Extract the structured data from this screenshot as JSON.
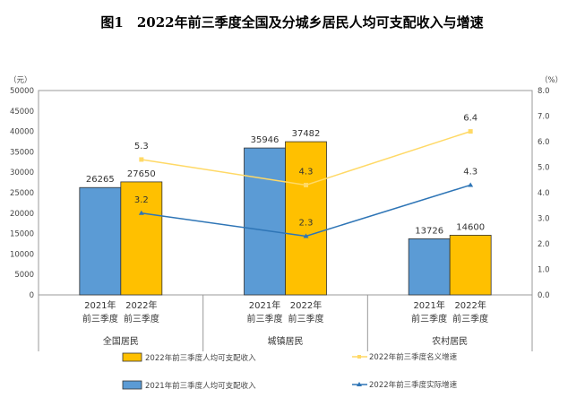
{
  "chart_data": {
    "type": "bar+line",
    "title": "图1　2022年前三季度全国及分城乡居民人均可支配收入与增速",
    "ylabel_left": "（元）",
    "ylabel_right": "（%）",
    "ylim_left": [
      0,
      50000
    ],
    "ylim_right": [
      0,
      8.0
    ],
    "yticks_left": [
      "0",
      "5000",
      "10000",
      "15000",
      "20000",
      "25000",
      "30000",
      "35000",
      "40000",
      "45000",
      "50000"
    ],
    "yticks_right": [
      "0.0",
      "1.0",
      "2.0",
      "3.0",
      "4.0",
      "5.0",
      "6.0",
      "7.0",
      "8.0"
    ],
    "groups": [
      "全国居民",
      "城镇居民",
      "农村居民"
    ],
    "sub_categories": [
      [
        "2021年",
        "前三季度"
      ],
      [
        "2022年",
        "前三季度"
      ]
    ],
    "bar_series": [
      {
        "name": "2021年前三季度人均可支配收入",
        "color": "#5b9bd5",
        "values": [
          26265,
          35946,
          13726
        ]
      },
      {
        "name": "2022年前三季度人均可支配收入",
        "color": "#ffc000",
        "values": [
          27650,
          37482,
          14600
        ]
      }
    ],
    "line_series": [
      {
        "name": "2022年前三季度名义增速",
        "color": "#ffd966",
        "values": [
          5.3,
          4.3,
          6.4
        ],
        "labels": [
          "5.3",
          "4.3",
          "6.4"
        ]
      },
      {
        "name": "2022年前三季度实际增速",
        "color": "#2e75b6",
        "values": [
          3.2,
          2.3,
          4.3
        ],
        "labels": [
          "3.2",
          "2.3",
          "4.3"
        ]
      }
    ],
    "legend_position": "bottom"
  }
}
